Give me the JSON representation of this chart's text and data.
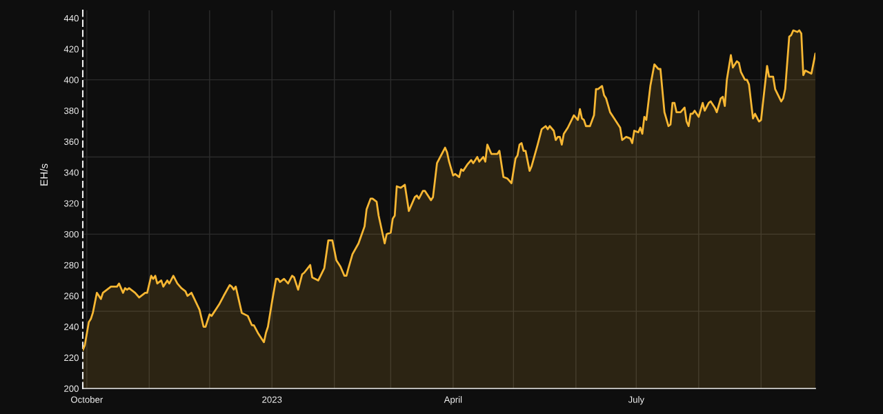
{
  "chart_data": {
    "type": "area",
    "ylabel": "EH/s",
    "x": [
      "2022-09-29",
      "2022-09-30",
      "2022-10-02",
      "2022-10-03",
      "2022-10-04",
      "2022-10-06",
      "2022-10-08",
      "2022-10-09",
      "2022-10-11",
      "2022-10-13",
      "2022-10-16",
      "2022-10-17",
      "2022-10-19",
      "2022-10-20",
      "2022-10-21",
      "2022-10-22",
      "2022-10-24",
      "2022-10-25",
      "2022-10-27",
      "2022-10-30",
      "2022-10-31",
      "2022-11-02",
      "2022-11-03",
      "2022-11-04",
      "2022-11-05",
      "2022-11-07",
      "2022-11-08",
      "2022-11-10",
      "2022-11-11",
      "2022-11-13",
      "2022-11-15",
      "2022-11-17",
      "2022-11-19",
      "2022-11-20",
      "2022-11-22",
      "2022-11-26",
      "2022-11-28",
      "2022-11-29",
      "2022-12-01",
      "2022-12-02",
      "2022-12-05",
      "2022-12-06",
      "2022-12-08",
      "2022-12-11",
      "2022-12-12",
      "2022-12-13",
      "2022-12-14",
      "2022-12-17",
      "2022-12-20",
      "2022-12-22",
      "2022-12-23",
      "2022-12-25",
      "2022-12-26",
      "2022-12-28",
      "2022-12-29",
      "2022-12-30",
      "2023-01-01",
      "2023-01-03",
      "2023-01-04",
      "2023-01-05",
      "2023-01-07",
      "2023-01-09",
      "2023-01-11",
      "2023-01-12",
      "2023-01-14",
      "2023-01-16",
      "2023-01-17",
      "2023-01-20",
      "2023-01-21",
      "2023-01-24",
      "2023-01-27",
      "2023-01-29",
      "2023-01-31",
      "2023-02-02",
      "2023-02-04",
      "2023-02-06",
      "2023-02-07",
      "2023-02-08",
      "2023-02-10",
      "2023-02-13",
      "2023-02-16",
      "2023-02-17",
      "2023-02-19",
      "2023-02-20",
      "2023-02-22",
      "2023-02-23",
      "2023-02-26",
      "2023-02-27",
      "2023-03-01",
      "2023-03-02",
      "2023-03-03",
      "2023-03-04",
      "2023-03-06",
      "2023-03-08",
      "2023-03-10",
      "2023-03-13",
      "2023-03-14",
      "2023-03-15",
      "2023-03-17",
      "2023-03-18",
      "2023-03-21",
      "2023-03-22",
      "2023-03-24",
      "2023-03-26",
      "2023-03-28",
      "2023-03-29",
      "2023-03-30",
      "2023-04-01",
      "2023-04-02",
      "2023-04-04",
      "2023-04-05",
      "2023-04-06",
      "2023-04-08",
      "2023-04-10",
      "2023-04-11",
      "2023-04-13",
      "2023-04-14",
      "2023-04-16",
      "2023-04-17",
      "2023-04-18",
      "2023-04-20",
      "2023-04-23",
      "2023-04-24",
      "2023-04-26",
      "2023-04-28",
      "2023-04-30",
      "2023-05-02",
      "2023-05-03",
      "2023-05-04",
      "2023-05-05",
      "2023-05-06",
      "2023-05-07",
      "2023-05-09",
      "2023-05-10",
      "2023-05-13",
      "2023-05-15",
      "2023-05-17",
      "2023-05-18",
      "2023-05-19",
      "2023-05-21",
      "2023-05-22",
      "2023-05-23",
      "2023-05-24",
      "2023-05-25",
      "2023-05-26",
      "2023-05-28",
      "2023-05-31",
      "2023-06-02",
      "2023-06-03",
      "2023-06-04",
      "2023-06-05",
      "2023-06-06",
      "2023-06-08",
      "2023-06-10",
      "2023-06-11",
      "2023-06-12",
      "2023-06-14",
      "2023-06-15",
      "2023-06-16",
      "2023-06-18",
      "2023-06-20",
      "2023-06-23",
      "2023-06-24",
      "2023-06-26",
      "2023-06-28",
      "2023-06-29",
      "2023-06-30",
      "2023-07-02",
      "2023-07-03",
      "2023-07-04",
      "2023-07-05",
      "2023-07-06",
      "2023-07-08",
      "2023-07-10",
      "2023-07-12",
      "2023-07-13",
      "2023-07-15",
      "2023-07-17",
      "2023-07-18",
      "2023-07-19",
      "2023-07-20",
      "2023-07-21",
      "2023-07-23",
      "2023-07-25",
      "2023-07-26",
      "2023-07-27",
      "2023-07-28",
      "2023-07-29",
      "2023-07-30",
      "2023-08-01",
      "2023-08-03",
      "2023-08-04",
      "2023-08-06",
      "2023-08-07",
      "2023-08-09",
      "2023-08-10",
      "2023-08-12",
      "2023-08-13",
      "2023-08-14",
      "2023-08-15",
      "2023-08-17",
      "2023-08-18",
      "2023-08-20",
      "2023-08-21",
      "2023-08-22",
      "2023-08-24",
      "2023-08-25",
      "2023-08-26",
      "2023-08-28",
      "2023-08-29",
      "2023-08-31",
      "2023-09-01",
      "2023-09-04",
      "2023-09-05",
      "2023-09-07",
      "2023-09-08",
      "2023-09-11",
      "2023-09-12",
      "2023-09-13",
      "2023-09-15",
      "2023-09-16",
      "2023-09-17",
      "2023-09-19",
      "2023-09-20",
      "2023-09-21",
      "2023-09-22",
      "2023-09-23",
      "2023-09-26",
      "2023-09-28"
    ],
    "series": [
      {
        "color": "#f7b733",
        "values": [
          225,
          228,
          243,
          245,
          249,
          262,
          258,
          262,
          264,
          266,
          266,
          268,
          262,
          265,
          264,
          265,
          263,
          262,
          259,
          262,
          262,
          273,
          271,
          273,
          268,
          270,
          266,
          270,
          268,
          273,
          268,
          265,
          263,
          260,
          262,
          251,
          240,
          240,
          248,
          247,
          253,
          255,
          260,
          267,
          266,
          264,
          266,
          249,
          247,
          241,
          241,
          236,
          234,
          230,
          236,
          240,
          256,
          271,
          271,
          269,
          271,
          268,
          273,
          272,
          264,
          274,
          275,
          280,
          272,
          270,
          278,
          296,
          296,
          283,
          279,
          273,
          273,
          278,
          287,
          294,
          305,
          316,
          323,
          323,
          321,
          312,
          294,
          300,
          301,
          310,
          312,
          331,
          330,
          332,
          315,
          324,
          325,
          323,
          328,
          328,
          322,
          324,
          346,
          351,
          356,
          353,
          347,
          338,
          339,
          337,
          342,
          341,
          345,
          348,
          346,
          350,
          347,
          350,
          347,
          358,
          352,
          352,
          354,
          337,
          336,
          333,
          349,
          351,
          358,
          359,
          354,
          354,
          341,
          344,
          358,
          368,
          370,
          368,
          370,
          367,
          361,
          363,
          363,
          358,
          365,
          369,
          377,
          374,
          381,
          375,
          374,
          370,
          370,
          377,
          394,
          394,
          396,
          390,
          388,
          379,
          375,
          369,
          361,
          363,
          362,
          359,
          367,
          366,
          369,
          365,
          376,
          374,
          396,
          410,
          407,
          407,
          379,
          370,
          371,
          385,
          385,
          379,
          379,
          382,
          373,
          370,
          378,
          378,
          380,
          376,
          385,
          380,
          385,
          386,
          382,
          379,
          388,
          389,
          383,
          400,
          416,
          408,
          412,
          411,
          405,
          400,
          400,
          397,
          375,
          378,
          373,
          374,
          409,
          402,
          402,
          394,
          386,
          388,
          394,
          428,
          429,
          432,
          431,
          432,
          430,
          403,
          406,
          404,
          417
        ]
      }
    ],
    "xlim": [
      "2022-09-29",
      "2023-09-28"
    ],
    "ylim": [
      200,
      445
    ],
    "xticks": [
      {
        "value": "2022-10-01",
        "label": "October"
      },
      {
        "value": "2022-11-01",
        "label": null
      },
      {
        "value": "2022-12-01",
        "label": null
      },
      {
        "value": "2023-01-01",
        "label": "2023"
      },
      {
        "value": "2023-02-01",
        "label": null
      },
      {
        "value": "2023-03-01",
        "label": null
      },
      {
        "value": "2023-04-01",
        "label": "April"
      },
      {
        "value": "2023-05-01",
        "label": null
      },
      {
        "value": "2023-06-01",
        "label": null
      },
      {
        "value": "2023-07-01",
        "label": "July"
      },
      {
        "value": "2023-08-01",
        "label": null
      },
      {
        "value": "2023-09-01",
        "label": null
      }
    ],
    "yticks": [
      200,
      220,
      240,
      260,
      280,
      300,
      320,
      340,
      360,
      380,
      400,
      420,
      440
    ],
    "grid": "x",
    "line_style": "solid",
    "ref_lines": [
      {
        "axis": "y",
        "value": 250,
        "color": "#2c2c2c"
      },
      {
        "axis": "y",
        "value": 300,
        "color": "#2c2c2c"
      },
      {
        "axis": "y",
        "value": 350,
        "color": "#2c2c2c"
      },
      {
        "axis": "y",
        "value": 400,
        "color": "#2c2c2c"
      }
    ]
  }
}
